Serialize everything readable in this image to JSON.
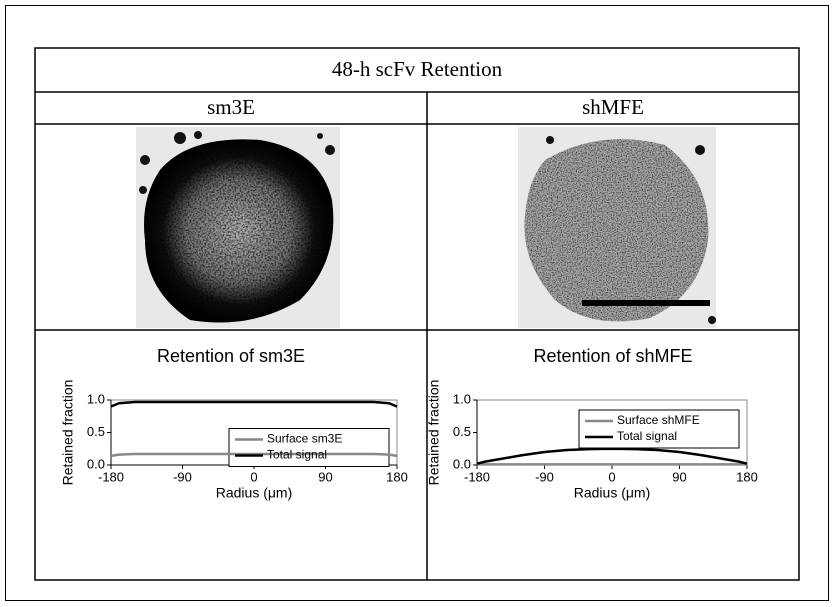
{
  "title": "48-h scFv Retention",
  "columns": [
    "sm3E",
    "shMFE"
  ],
  "chart_data": [
    {
      "type": "line",
      "title": "Retention of sm3E",
      "x_label": "Radius (μm)",
      "y_label": "Retained fraction",
      "x": [
        -180,
        -170,
        -150,
        -120,
        -90,
        -60,
        -30,
        0,
        30,
        60,
        90,
        120,
        150,
        170,
        180
      ],
      "series": [
        {
          "name": "Surface sm3E",
          "color": "#888888",
          "values": [
            0.14,
            0.16,
            0.17,
            0.17,
            0.17,
            0.17,
            0.17,
            0.17,
            0.17,
            0.17,
            0.17,
            0.17,
            0.17,
            0.16,
            0.14
          ]
        },
        {
          "name": "Total signal",
          "color": "#000000",
          "values": [
            0.9,
            0.95,
            0.97,
            0.97,
            0.97,
            0.97,
            0.97,
            0.97,
            0.97,
            0.97,
            0.97,
            0.97,
            0.97,
            0.95,
            0.9
          ]
        }
      ],
      "xlim": [
        -180,
        180
      ],
      "xticks": [
        -180,
        -90,
        0,
        90,
        180
      ],
      "ylim": [
        0,
        1
      ],
      "yticks": [
        {
          "value": 0,
          "label": "0.0"
        },
        {
          "value": 0.5,
          "label": "0.5"
        },
        {
          "value": 1,
          "label": "1.0"
        }
      ],
      "legend": "center right"
    },
    {
      "type": "line",
      "title": "Retention of shMFE",
      "x_label": "Radius (μm)",
      "y_label": "Retained fraction",
      "x": [
        -180,
        -170,
        -150,
        -120,
        -90,
        -60,
        -30,
        0,
        30,
        60,
        90,
        120,
        150,
        170,
        180
      ],
      "series": [
        {
          "name": "Surface shMFE",
          "color": "#888888",
          "values": [
            0.01,
            0.01,
            0.01,
            0.01,
            0.01,
            0.01,
            0.01,
            0.01,
            0.01,
            0.01,
            0.01,
            0.01,
            0.01,
            0.01,
            0.01
          ]
        },
        {
          "name": "Total signal",
          "color": "#000000",
          "values": [
            0.02,
            0.05,
            0.09,
            0.15,
            0.2,
            0.23,
            0.245,
            0.25,
            0.245,
            0.23,
            0.2,
            0.15,
            0.09,
            0.05,
            0.02
          ]
        }
      ],
      "xlim": [
        -180,
        180
      ],
      "xticks": [
        -180,
        -90,
        0,
        90,
        180
      ],
      "ylim": [
        0,
        1
      ],
      "yticks": [
        {
          "value": 0,
          "label": "0.0"
        },
        {
          "value": 0.5,
          "label": "0.5"
        },
        {
          "value": 1,
          "label": "1.0"
        }
      ],
      "legend": "upper right"
    }
  ]
}
